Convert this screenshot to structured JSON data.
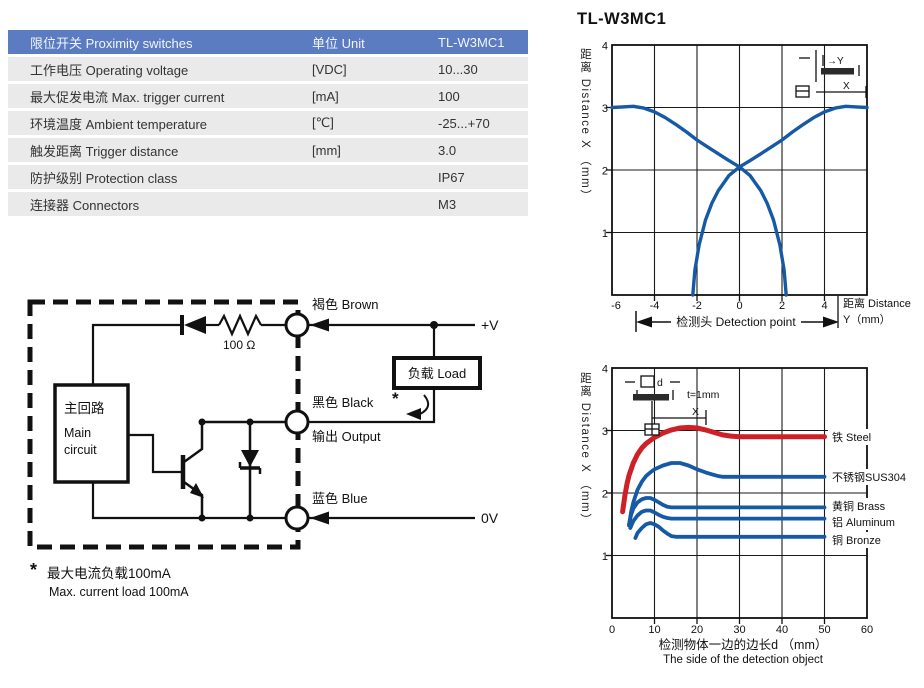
{
  "table": {
    "header": {
      "product": "限位开关 Proximity switches",
      "unit": "单位 Unit",
      "model": "TL-W3MC1"
    },
    "rows": [
      {
        "label": "工作电压 Operating voltage",
        "unit": "[VDC]",
        "value": "10...30"
      },
      {
        "label": "最大促发电流 Max. trigger current",
        "unit": "[mA]",
        "value": "100"
      },
      {
        "label": "环境温度 Ambient temperature",
        "unit": "[℃]",
        "value": "-25...+70"
      },
      {
        "label": "触发距离 Trigger distance",
        "unit": "[mm]",
        "value": "3.0"
      },
      {
        "label": "防护级别 Protection class",
        "unit": "",
        "value": "IP67"
      },
      {
        "label": "连接器 Connectors",
        "unit": "",
        "value": "M3"
      }
    ]
  },
  "circuit": {
    "brown": "褐色 Brown",
    "black": "黑色 Black",
    "output": "输出 Output",
    "blue": "蓝色 Blue",
    "plus_v": "+V",
    "zero_v": "0V",
    "load": "负载 Load",
    "main_cn": "主回路",
    "main_en1": "Main",
    "main_en2": "circuit",
    "resistor": "100 Ω",
    "asterisk": "*",
    "note_star": "*",
    "note_cn": "最大电流负载100mA",
    "note_en": "Max. current load 100mA"
  },
  "charts": {
    "title": "TL-W3MC1",
    "y_axis_label": "距离 Distance X （mm）",
    "top": {
      "y_ticks": [
        "4",
        "3",
        "2",
        "1"
      ],
      "x_ticks": [
        "-6",
        "-4",
        "-2",
        "0",
        "2",
        "4"
      ],
      "right_label1": "距离 Distance",
      "right_label2": "Y（mm）",
      "bottom_annotation": "检测头 Detection point",
      "inset_y": "→Y",
      "inset_x": "X"
    },
    "bottom": {
      "y_ticks": [
        "4",
        "3",
        "2",
        "1"
      ],
      "x_ticks": [
        "0",
        "10",
        "20",
        "30",
        "40",
        "50",
        "60"
      ],
      "inset_d": "d",
      "inset_x": "X",
      "inset_t": "t=1mm",
      "caption1": "检测物体一边的边长d （mm）",
      "caption2": "The side of the detection object"
    }
  },
  "chart_data": [
    {
      "type": "line",
      "title": "TL-W3MC1",
      "xlabel": "距离 Distance Y（mm）",
      "ylabel": "距离 Distance X（mm）",
      "xlim": [
        -6,
        6
      ],
      "ylim": [
        0,
        4
      ],
      "grid": true,
      "series": [
        {
          "color": "#1659a5",
          "points": [
            [
              -6,
              3.0
            ],
            [
              -5.5,
              3.01
            ],
            [
              -5,
              3.02
            ],
            [
              -4.5,
              2.99
            ],
            [
              -4,
              2.93
            ],
            [
              -3.5,
              2.84
            ],
            [
              -3,
              2.73
            ],
            [
              -2.5,
              2.61
            ],
            [
              -2,
              2.48
            ],
            [
              -1.5,
              2.37
            ],
            [
              -1,
              2.26
            ],
            [
              -0.5,
              2.15
            ],
            [
              0,
              2.05
            ],
            [
              0.5,
              1.91
            ],
            [
              1,
              1.67
            ],
            [
              1.3,
              1.47
            ],
            [
              1.6,
              1.2
            ],
            [
              1.9,
              0.8
            ],
            [
              2.1,
              0.4
            ],
            [
              2.2,
              0
            ]
          ]
        },
        {
          "color": "#1659a5",
          "points": [
            [
              -2.2,
              0
            ],
            [
              -2.1,
              0.4
            ],
            [
              -1.9,
              0.8
            ],
            [
              -1.6,
              1.2
            ],
            [
              -1.3,
              1.47
            ],
            [
              -1,
              1.67
            ],
            [
              -0.5,
              1.91
            ],
            [
              0,
              2.05
            ],
            [
              0.5,
              2.15
            ],
            [
              1,
              2.26
            ],
            [
              1.5,
              2.37
            ],
            [
              2,
              2.48
            ],
            [
              2.5,
              2.61
            ],
            [
              3,
              2.73
            ],
            [
              3.5,
              2.84
            ],
            [
              4,
              2.93
            ],
            [
              4.5,
              2.99
            ],
            [
              5,
              3.02
            ],
            [
              5.5,
              3.01
            ],
            [
              6,
              3.0
            ]
          ]
        }
      ]
    },
    {
      "type": "line",
      "xlabel": "检测物体一边的边长d（mm） The side of the detection object",
      "ylabel": "距离 Distance X（mm）",
      "xlim": [
        0,
        60
      ],
      "ylim": [
        0,
        4
      ],
      "grid": true,
      "legend_position": "right",
      "series": [
        {
          "name": "铁 Steel",
          "color": "#cd2027",
          "width": 5,
          "points": [
            [
              2.5,
              1.7
            ],
            [
              3,
              1.95
            ],
            [
              3.5,
              2.14
            ],
            [
              4,
              2.28
            ],
            [
              5,
              2.48
            ],
            [
              6,
              2.62
            ],
            [
              7,
              2.72
            ],
            [
              8,
              2.79
            ],
            [
              10,
              2.89
            ],
            [
              12,
              2.96
            ],
            [
              14,
              3.01
            ],
            [
              16,
              3.04
            ],
            [
              18,
              3.05
            ],
            [
              20,
              3.04
            ],
            [
              22,
              3.01
            ],
            [
              24,
              2.97
            ],
            [
              26,
              2.93
            ],
            [
              28,
              2.91
            ],
            [
              30,
              2.9
            ],
            [
              40,
              2.9
            ],
            [
              50,
              2.9
            ]
          ]
        },
        {
          "name": "不锈钢SUS304",
          "color": "#1659a5",
          "width": 3.8,
          "points": [
            [
              4,
              1.48
            ],
            [
              4.5,
              1.7
            ],
            [
              5,
              1.85
            ],
            [
              6,
              2.05
            ],
            [
              7,
              2.18
            ],
            [
              8,
              2.27
            ],
            [
              9,
              2.33
            ],
            [
              10,
              2.38
            ],
            [
              12,
              2.44
            ],
            [
              14,
              2.48
            ],
            [
              16,
              2.48
            ],
            [
              18,
              2.44
            ],
            [
              20,
              2.38
            ],
            [
              22,
              2.33
            ],
            [
              24,
              2.29
            ],
            [
              25,
              2.27
            ],
            [
              26,
              2.26
            ],
            [
              30,
              2.26
            ],
            [
              40,
              2.26
            ],
            [
              50,
              2.26
            ]
          ]
        },
        {
          "name": "黄铜 Brass",
          "color": "#1659a5",
          "width": 3.8,
          "points": [
            [
              4,
              1.5
            ],
            [
              4.5,
              1.65
            ],
            [
              5,
              1.75
            ],
            [
              6,
              1.85
            ],
            [
              7,
              1.9
            ],
            [
              8,
              1.92
            ],
            [
              9,
              1.92
            ],
            [
              10,
              1.89
            ],
            [
              11,
              1.85
            ],
            [
              12,
              1.81
            ],
            [
              13,
              1.78
            ],
            [
              14,
              1.77
            ],
            [
              20,
              1.77
            ],
            [
              30,
              1.77
            ],
            [
              40,
              1.77
            ],
            [
              50,
              1.77
            ]
          ]
        },
        {
          "name": "铝 Aluminum",
          "color": "#1659a5",
          "width": 3.8,
          "points": [
            [
              4.3,
              1.44
            ],
            [
              5,
              1.55
            ],
            [
              6,
              1.64
            ],
            [
              7,
              1.7
            ],
            [
              8,
              1.72
            ],
            [
              9,
              1.72
            ],
            [
              10,
              1.69
            ],
            [
              11,
              1.65
            ],
            [
              12,
              1.62
            ],
            [
              13,
              1.6
            ],
            [
              14,
              1.59
            ],
            [
              20,
              1.59
            ],
            [
              30,
              1.59
            ],
            [
              40,
              1.59
            ],
            [
              50,
              1.59
            ]
          ]
        },
        {
          "name": "铜 Bronze",
          "color": "#1659a5",
          "width": 3.8,
          "points": [
            [
              5.5,
              1.28
            ],
            [
              6,
              1.36
            ],
            [
              7,
              1.44
            ],
            [
              8,
              1.5
            ],
            [
              9,
              1.52
            ],
            [
              10,
              1.5
            ],
            [
              11,
              1.46
            ],
            [
              12,
              1.4
            ],
            [
              13,
              1.35
            ],
            [
              14,
              1.31
            ],
            [
              15,
              1.3
            ],
            [
              20,
              1.3
            ],
            [
              30,
              1.3
            ],
            [
              40,
              1.3
            ],
            [
              50,
              1.3
            ]
          ]
        }
      ]
    }
  ]
}
